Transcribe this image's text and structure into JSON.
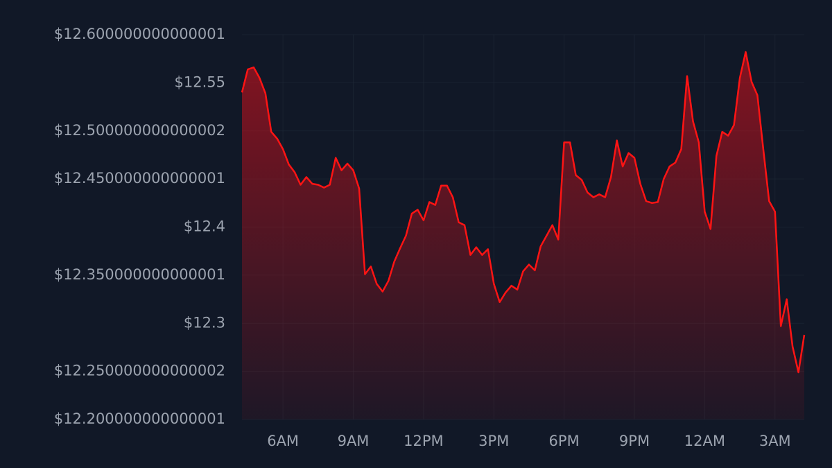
{
  "chart_data": {
    "type": "area",
    "color": "#ff1414",
    "grid": true,
    "x": [
      4.25,
      4.5,
      4.75,
      5,
      5.25,
      5.5,
      5.75,
      6,
      6.25,
      6.5,
      6.75,
      7,
      7.25,
      7.5,
      7.75,
      8,
      8.25,
      8.5,
      8.75,
      9,
      9.25,
      9.5,
      9.75,
      10,
      10.25,
      10.5,
      10.75,
      11,
      11.25,
      11.5,
      11.75,
      12,
      12.25,
      12.5,
      12.75,
      13,
      13.25,
      13.5,
      13.75,
      14,
      14.25,
      14.5,
      14.75,
      15,
      15.25,
      15.5,
      15.75,
      16,
      16.25,
      16.5,
      16.75,
      17,
      17.25,
      17.5,
      17.75,
      18,
      18.25,
      18.5,
      18.75,
      19,
      19.25,
      19.5,
      19.75,
      20,
      20.25,
      20.5,
      20.75,
      21,
      21.25,
      21.5,
      21.75,
      22,
      22.25,
      22.5,
      22.75,
      23,
      23.25,
      23.5,
      23.75,
      24,
      24.25,
      24.5,
      24.75,
      25,
      25.25,
      25.5,
      25.75,
      26,
      26.25,
      26.5,
      26.75,
      27,
      27.25,
      27.5,
      27.75,
      28,
      28.25
    ],
    "values": [
      12.54,
      12.564,
      12.566,
      12.555,
      12.539,
      12.499,
      12.492,
      12.481,
      12.465,
      12.457,
      12.444,
      12.452,
      12.445,
      12.444,
      12.441,
      12.444,
      12.472,
      12.459,
      12.466,
      12.459,
      12.44,
      12.351,
      12.359,
      12.341,
      12.333,
      12.344,
      12.364,
      12.378,
      12.391,
      12.414,
      12.418,
      12.407,
      12.426,
      12.423,
      12.443,
      12.443,
      12.431,
      12.405,
      12.402,
      12.371,
      12.379,
      12.371,
      12.377,
      12.341,
      12.322,
      12.332,
      12.339,
      12.335,
      12.354,
      12.361,
      12.355,
      12.38,
      12.391,
      12.402,
      12.387,
      12.488,
      12.488,
      12.454,
      12.449,
      12.436,
      12.431,
      12.434,
      12.431,
      12.452,
      12.49,
      12.463,
      12.477,
      12.472,
      12.445,
      12.427,
      12.425,
      12.426,
      12.45,
      12.463,
      12.467,
      12.481,
      12.557,
      12.51,
      12.488,
      12.416,
      12.398,
      12.474,
      12.499,
      12.495,
      12.506,
      12.555,
      12.582,
      12.551,
      12.537,
      12.481,
      12.427,
      12.416,
      12.297,
      12.325,
      12.276,
      12.249,
      12.288
    ],
    "xlim": [
      4.25,
      28.25
    ],
    "xticks": [
      {
        "value": 6,
        "label": "6AM"
      },
      {
        "value": 9,
        "label": "9AM"
      },
      {
        "value": 12,
        "label": "12PM"
      },
      {
        "value": 15,
        "label": "3PM"
      },
      {
        "value": 18,
        "label": "6PM"
      },
      {
        "value": 21,
        "label": "9PM"
      },
      {
        "value": 24,
        "label": "12AM"
      },
      {
        "value": 27,
        "label": "3AM"
      }
    ],
    "ylim": [
      12.200000000000001,
      12.600000000000001
    ],
    "yticks": [
      {
        "value": 12.600000000000001,
        "label": "$12.600000000000001"
      },
      {
        "value": 12.55,
        "label": "$12.55"
      },
      {
        "value": 12.500000000000002,
        "label": "$12.500000000000002"
      },
      {
        "value": 12.450000000000001,
        "label": "$12.450000000000001"
      },
      {
        "value": 12.4,
        "label": "$12.4"
      },
      {
        "value": 12.350000000000001,
        "label": "$12.350000000000001"
      },
      {
        "value": 12.3,
        "label": "$12.3"
      },
      {
        "value": 12.250000000000002,
        "label": "$12.250000000000002"
      },
      {
        "value": 12.200000000000001,
        "label": "$12.200000000000001"
      }
    ]
  }
}
